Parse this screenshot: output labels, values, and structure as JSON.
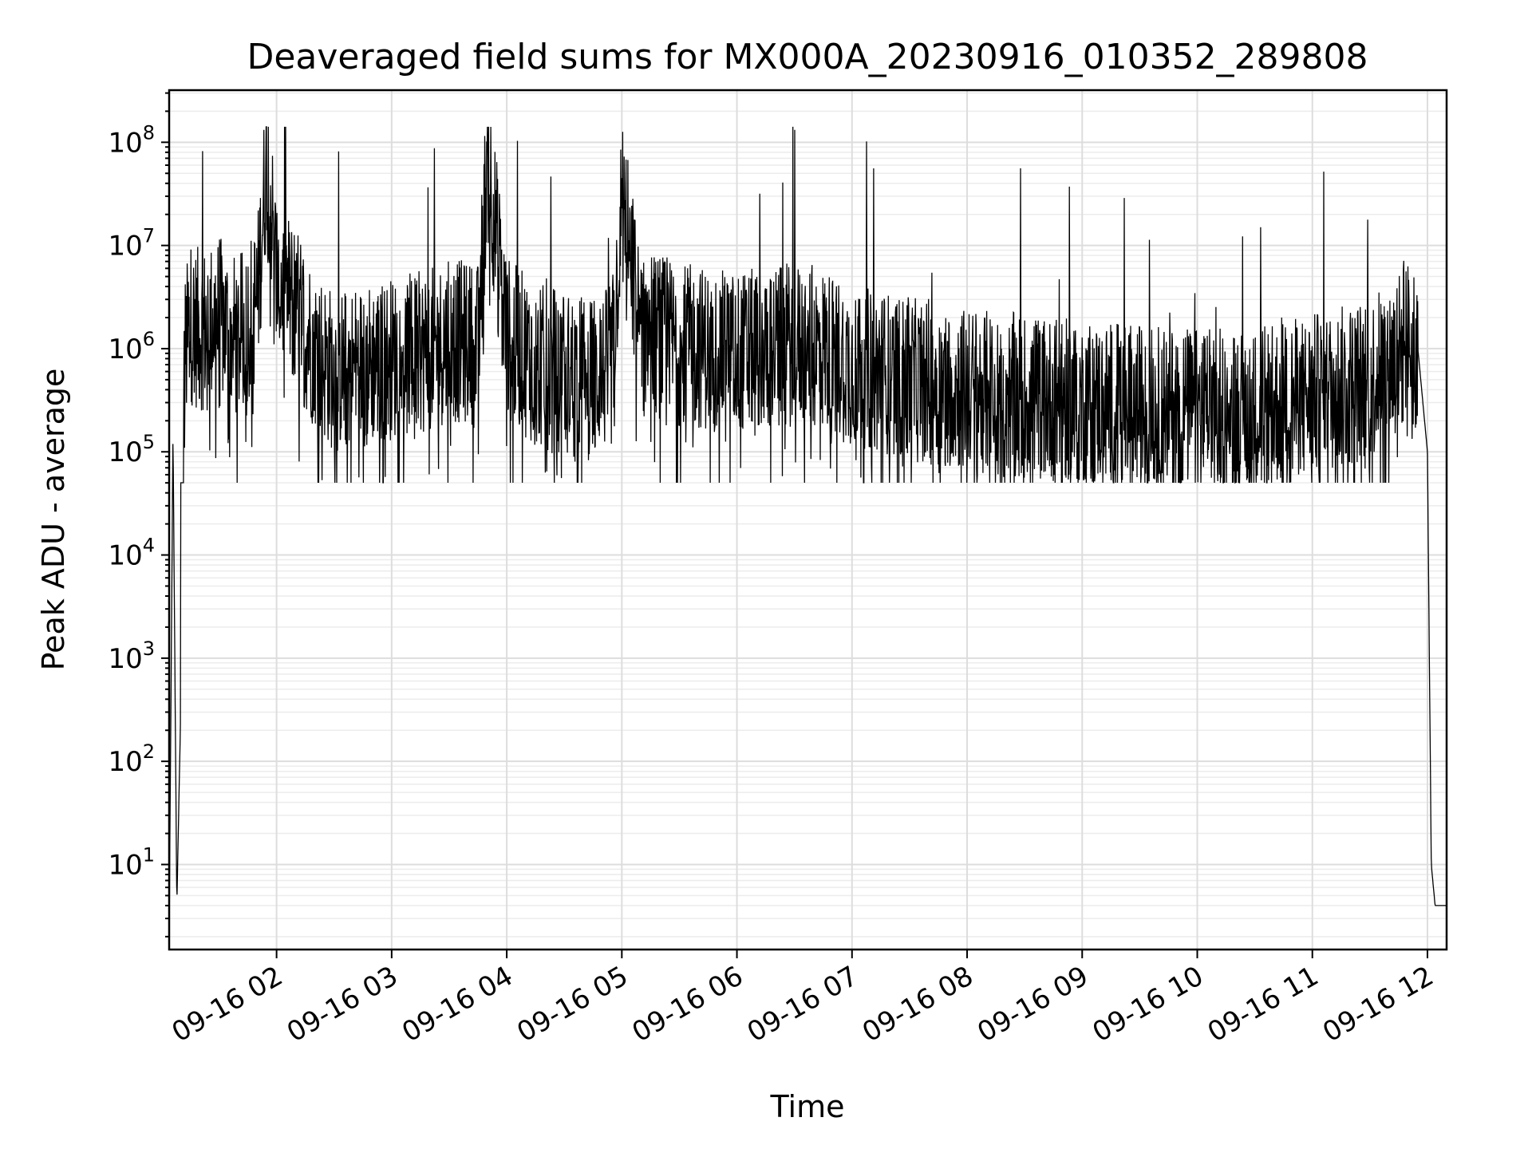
{
  "chart_data": {
    "type": "line",
    "title": "Deaveraged field sums for MX000A_20230916_010352_289808",
    "xlabel": "Time",
    "ylabel": "Peak ADU - average",
    "yscale": "log",
    "ylim": [
      1.5,
      320000000
    ],
    "xlim": [
      "09-16 01:04",
      "09-16 12:10"
    ],
    "grid": true,
    "line_color": "#000000",
    "x_ticks": [
      "09-16 02",
      "09-16 03",
      "09-16 04",
      "09-16 05",
      "09-16 06",
      "09-16 07",
      "09-16 08",
      "09-16 09",
      "09-16 10",
      "09-16 11",
      "09-16 12"
    ],
    "y_ticks": [
      {
        "base": "10",
        "exp": "1",
        "value": 10
      },
      {
        "base": "10",
        "exp": "2",
        "value": 100
      },
      {
        "base": "10",
        "exp": "3",
        "value": 1000
      },
      {
        "base": "10",
        "exp": "4",
        "value": 10000
      },
      {
        "base": "10",
        "exp": "5",
        "value": 100000
      },
      {
        "base": "10",
        "exp": "6",
        "value": 1000000
      },
      {
        "base": "10",
        "exp": "7",
        "value": 10000000
      },
      {
        "base": "10",
        "exp": "8",
        "value": 100000000
      }
    ],
    "series": [
      {
        "x": [
          "09-16 01:04",
          "09-16 01:06",
          "09-16 01:08",
          "09-16 01:10",
          "09-16 01:12",
          "09-16 01:15",
          "09-16 01:20",
          "09-16 01:30",
          "09-16 01:40",
          "09-16 01:50",
          "09-16 01:55",
          "09-16 02:00",
          "09-16 02:10",
          "09-16 02:20",
          "09-16 02:30",
          "09-16 02:45",
          "09-16 03:00",
          "09-16 03:15",
          "09-16 03:30",
          "09-16 03:45",
          "09-16 03:50",
          "09-16 04:00",
          "09-16 04:15",
          "09-16 04:30",
          "09-16 04:45",
          "09-16 04:55",
          "09-16 05:00",
          "09-16 05:10",
          "09-16 05:30",
          "09-16 05:45",
          "09-16 06:00",
          "09-16 06:15",
          "09-16 06:30",
          "09-16 06:45",
          "09-16 07:00",
          "09-16 07:15",
          "09-16 07:30",
          "09-16 07:45",
          "09-16 08:00",
          "09-16 08:30",
          "09-16 09:00",
          "09-16 09:30",
          "09-16 10:00",
          "09-16 10:30",
          "09-16 11:00",
          "09-16 11:30",
          "09-16 11:45",
          "09-16 11:50",
          "09-16 11:55",
          "09-16 12:00",
          "09-16 12:02",
          "09-16 12:04",
          "09-16 12:10"
        ],
        "y": [
          2,
          150000,
          4,
          300,
          800000,
          1800000,
          1500000,
          2000000,
          1200000,
          3000000,
          80000000,
          5000000,
          2500000,
          1000000,
          600000,
          700000,
          800000,
          900000,
          1200000,
          1100000,
          80000000,
          1300000,
          700000,
          600000,
          500000,
          700000,
          30000000,
          1500000,
          1100000,
          1000000,
          900000,
          1000000,
          1100000,
          1000000,
          700000,
          600000,
          500000,
          450000,
          400000,
          350000,
          300000,
          280000,
          260000,
          250000,
          350000,
          500000,
          900000,
          1200000,
          1000000,
          100000,
          10,
          4,
          4
        ]
      }
    ]
  }
}
